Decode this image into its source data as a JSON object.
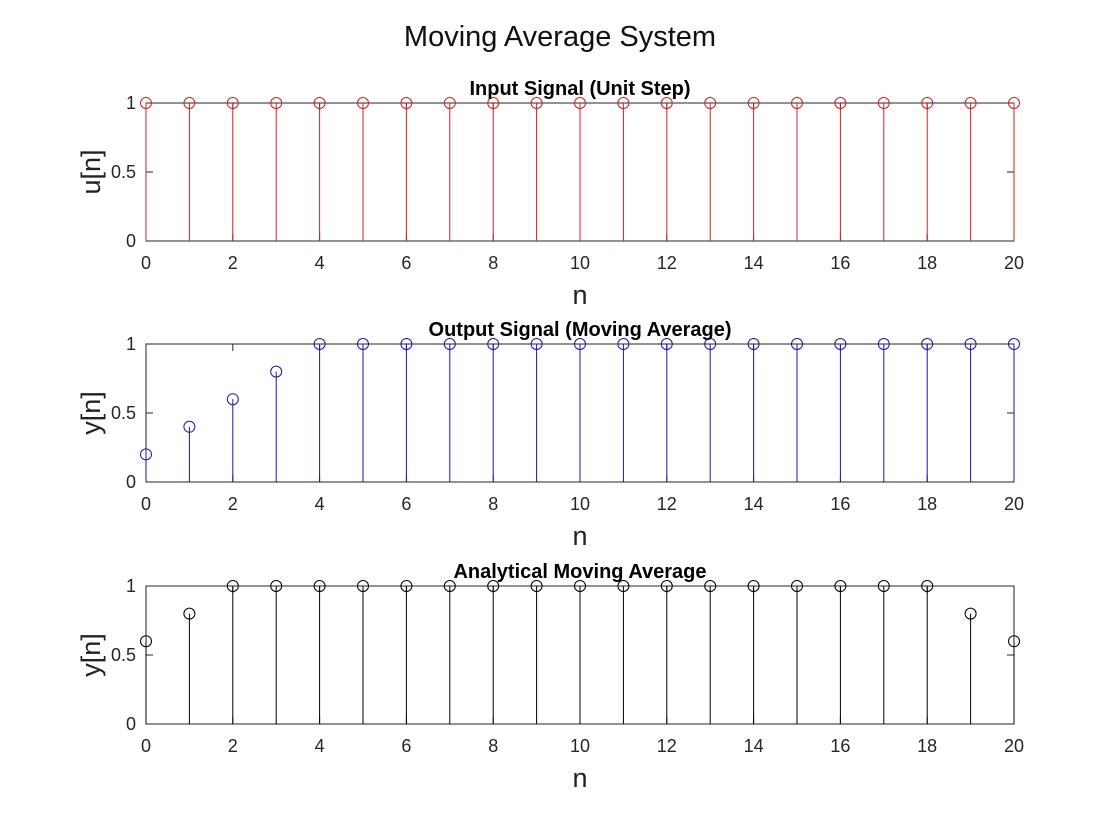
{
  "figure": {
    "title": "Moving Average System"
  },
  "chart_data": [
    {
      "type": "stem",
      "title": "Input Signal (Unit Step)",
      "xlabel": "n",
      "ylabel": "u[n]",
      "xlim": [
        0,
        20
      ],
      "ylim": [
        0,
        1
      ],
      "xticks": [
        0,
        2,
        4,
        6,
        8,
        10,
        12,
        14,
        16,
        18,
        20
      ],
      "yticks": [
        0,
        0.5,
        1
      ],
      "color": "#d62020",
      "x": [
        0,
        1,
        2,
        3,
        4,
        5,
        6,
        7,
        8,
        9,
        10,
        11,
        12,
        13,
        14,
        15,
        16,
        17,
        18,
        19,
        20
      ],
      "values": [
        1,
        1,
        1,
        1,
        1,
        1,
        1,
        1,
        1,
        1,
        1,
        1,
        1,
        1,
        1,
        1,
        1,
        1,
        1,
        1,
        1
      ]
    },
    {
      "type": "stem",
      "title": "Output Signal (Moving Average)",
      "xlabel": "n",
      "ylabel": "y[n]",
      "xlim": [
        0,
        20
      ],
      "ylim": [
        0,
        1
      ],
      "xticks": [
        0,
        2,
        4,
        6,
        8,
        10,
        12,
        14,
        16,
        18,
        20
      ],
      "yticks": [
        0,
        0.5,
        1
      ],
      "color": "#1a1aa8",
      "x": [
        0,
        1,
        2,
        3,
        4,
        5,
        6,
        7,
        8,
        9,
        10,
        11,
        12,
        13,
        14,
        15,
        16,
        17,
        18,
        19,
        20
      ],
      "values": [
        0.2,
        0.4,
        0.6,
        0.8,
        1,
        1,
        1,
        1,
        1,
        1,
        1,
        1,
        1,
        1,
        1,
        1,
        1,
        1,
        1,
        1,
        1
      ]
    },
    {
      "type": "stem",
      "title": "Analytical Moving Average",
      "xlabel": "n",
      "ylabel": "y[n]",
      "xlim": [
        0,
        20
      ],
      "ylim": [
        0,
        1
      ],
      "xticks": [
        0,
        2,
        4,
        6,
        8,
        10,
        12,
        14,
        16,
        18,
        20
      ],
      "yticks": [
        0,
        0.5,
        1
      ],
      "color": "#000000",
      "x": [
        0,
        1,
        2,
        3,
        4,
        5,
        6,
        7,
        8,
        9,
        10,
        11,
        12,
        13,
        14,
        15,
        16,
        17,
        18,
        19,
        20
      ],
      "values": [
        0.6,
        0.8,
        1,
        1,
        1,
        1,
        1,
        1,
        1,
        1,
        1,
        1,
        1,
        1,
        1,
        1,
        1,
        1,
        1,
        0.8,
        0.6
      ]
    }
  ]
}
